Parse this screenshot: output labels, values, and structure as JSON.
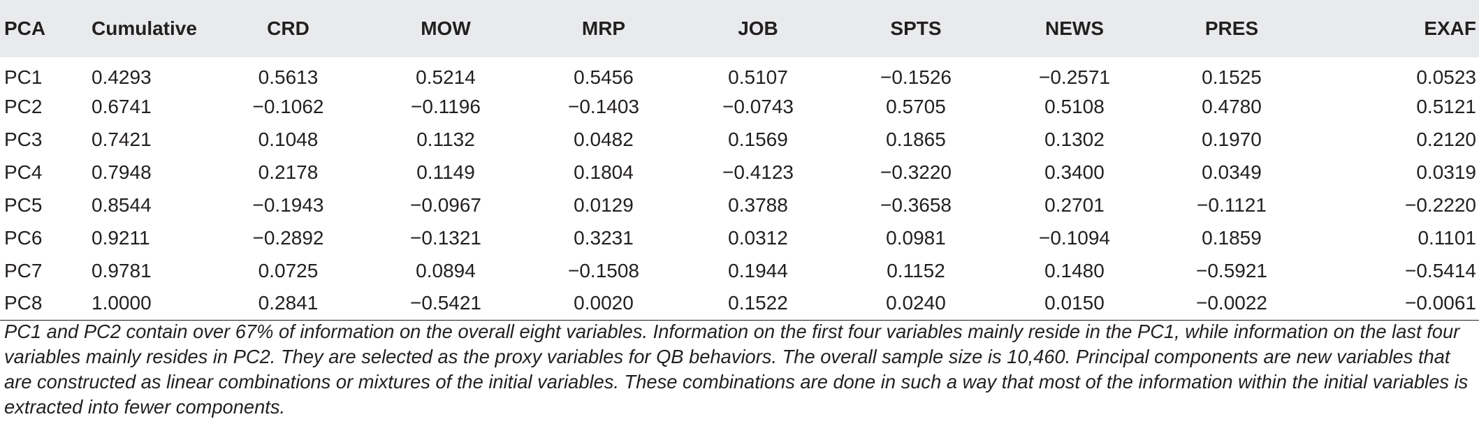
{
  "table": {
    "headers": [
      "PCA",
      "Cumulative",
      "CRD",
      "MOW",
      "MRP",
      "JOB",
      "SPTS",
      "NEWS",
      "PRES",
      "EXAF"
    ],
    "rows": [
      [
        "PC1",
        "0.4293",
        "0.5613",
        "0.5214",
        "0.5456",
        "0.5107",
        "−0.1526",
        "−0.2571",
        "0.1525",
        "0.0523"
      ],
      [
        "PC2",
        "0.6741",
        "−0.1062",
        "−0.1196",
        "−0.1403",
        "−0.0743",
        "0.5705",
        "0.5108",
        "0.4780",
        "0.5121"
      ],
      [
        "PC3",
        "0.7421",
        "0.1048",
        "0.1132",
        "0.0482",
        "0.1569",
        "0.1865",
        "0.1302",
        "0.1970",
        "0.2120"
      ],
      [
        "PC4",
        "0.7948",
        "0.2178",
        "0.1149",
        "0.1804",
        "−0.4123",
        "−0.3220",
        "0.3400",
        "0.0349",
        "0.0319"
      ],
      [
        "PC5",
        "0.8544",
        "−0.1943",
        "−0.0967",
        "0.0129",
        "0.3788",
        "−0.3658",
        "0.2701",
        "−0.1121",
        "−0.2220"
      ],
      [
        "PC6",
        "0.9211",
        "−0.2892",
        "−0.1321",
        "0.3231",
        "0.0312",
        "0.0981",
        "−0.1094",
        "0.1859",
        "0.1101"
      ],
      [
        "PC7",
        "0.9781",
        "0.0725",
        "0.0894",
        "−0.1508",
        "0.1944",
        "0.1152",
        "0.1480",
        "−0.5921",
        "−0.5414"
      ],
      [
        "PC8",
        "1.0000",
        "0.2841",
        "−0.5421",
        "0.0020",
        "0.1522",
        "0.0240",
        "0.0150",
        "−0.0022",
        "−0.0061"
      ]
    ]
  },
  "caption": "PC1 and PC2 contain over 67% of information on the overall eight variables. Information on the first four variables mainly reside in the PC1, while information on the last four variables mainly resides in PC2. They are selected as the proxy variables for QB behaviors. The overall sample size is 10,460. Principal components are new variables that are constructed as linear combinations or mixtures of the initial variables. These combinations are done in such a way that most of the information within the initial variables is extracted into fewer components."
}
